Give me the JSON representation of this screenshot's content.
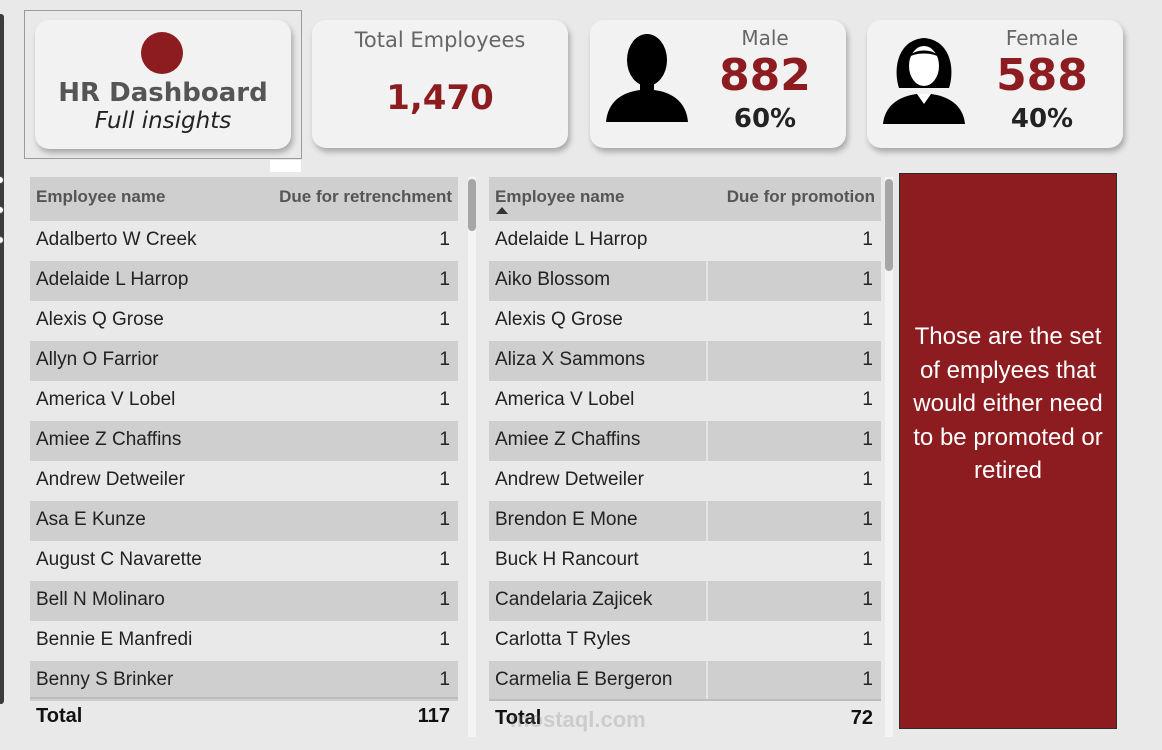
{
  "kpi": {
    "title": "HR Dashboard",
    "subtitle": "Full insights",
    "total_label": "Total Employees",
    "total_value": "1,470",
    "male_label": "Male",
    "male_value": "882",
    "male_pct": "60%",
    "female_label": "Female",
    "female_value": "588",
    "female_pct": "40%"
  },
  "colors": {
    "accent": "#8c1c20",
    "row_alt": "#cfcfcf",
    "background": "#e9e9e9"
  },
  "icons": {
    "logo": "red-circle",
    "male": "male-silhouette-icon",
    "female": "female-silhouette-icon"
  },
  "retrenchment_table": {
    "col_name": "Employee name",
    "col_value": "Due for retrenchment",
    "rows": [
      {
        "name": "Adalberto W Creek",
        "value": "1"
      },
      {
        "name": "Adelaide L Harrop",
        "value": "1"
      },
      {
        "name": "Alexis Q Grose",
        "value": "1"
      },
      {
        "name": "Allyn O Farrior",
        "value": "1"
      },
      {
        "name": "America V Lobel",
        "value": "1"
      },
      {
        "name": "Amiee Z Chaffins",
        "value": "1"
      },
      {
        "name": "Andrew Detweiler",
        "value": "1"
      },
      {
        "name": "Asa E Kunze",
        "value": "1"
      },
      {
        "name": "August C Navarette",
        "value": "1"
      },
      {
        "name": "Bell N Molinaro",
        "value": "1"
      },
      {
        "name": "Bennie E Manfredi",
        "value": "1"
      },
      {
        "name": "Benny S Brinker",
        "value": "1"
      }
    ],
    "total_label": "Total",
    "total_value": "117"
  },
  "promotion_table": {
    "col_name": "Employee name",
    "col_value": "Due for promotion",
    "rows": [
      {
        "name": "Adelaide L Harrop",
        "value": "1"
      },
      {
        "name": "Aiko Blossom",
        "value": "1"
      },
      {
        "name": "Alexis Q Grose",
        "value": "1"
      },
      {
        "name": "Aliza X Sammons",
        "value": "1"
      },
      {
        "name": "America V Lobel",
        "value": "1"
      },
      {
        "name": "Amiee Z Chaffins",
        "value": "1"
      },
      {
        "name": "Andrew Detweiler",
        "value": "1"
      },
      {
        "name": "Brendon E Mone",
        "value": "1"
      },
      {
        "name": "Buck H Rancourt",
        "value": "1"
      },
      {
        "name": "Candelaria Zajicek",
        "value": "1"
      },
      {
        "name": "Carlotta T Ryles",
        "value": "1"
      },
      {
        "name": "Carmelia E Bergeron",
        "value": "1"
      }
    ],
    "total_label": "Total",
    "total_value": "72"
  },
  "note_text": "Those are the set of emplyees that would either need to be promoted or retired",
  "watermark": "mostaql.com"
}
